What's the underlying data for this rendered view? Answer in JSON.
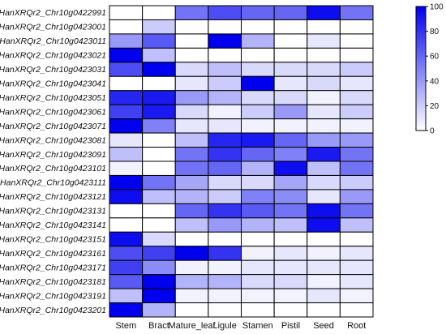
{
  "chart_data": {
    "type": "heatmap",
    "title": "",
    "xlabel": "",
    "ylabel": "",
    "rows": [
      "HanXRQr2_Chr10g0422991",
      "HanXRQr2_Chr10g0423001",
      "HanXRQr2_Chr10g0423011",
      "HanXRQr2_Chr10g0423021",
      "HanXRQr2_Chr10g0423031",
      "HanXRQr2_Chr10g0423041",
      "HanXRQr2_Chr10g0423051",
      "HanXRQr2_Chr10g0423061",
      "HanXRQr2_Chr10g0423071",
      "HanXRQr2_Chr10g0423081",
      "HanXRQr2_Chr10g0423091",
      "HanXRQr2_Chr10g0423101",
      "HanXRQr2_Chr10g0423111",
      "HanXRQr2_Chr10g0423121",
      "HanXRQr2_Chr10g0423131",
      "HanXRQr2_Chr10g0423141",
      "HanXRQr2_Chr10g0423151",
      "HanXRQr2_Chr10g0423161",
      "HanXRQr2_Chr10g0423171",
      "HanXRQr2_Chr10g0423181",
      "HanXRQr2_Chr10g0423191",
      "HanXRQr2_Chr10g0423201"
    ],
    "columns": [
      "Stem",
      "Bract",
      "Mature_leaf",
      "Ligule",
      "Stamen",
      "Pistil",
      "Seed",
      "Root"
    ],
    "values": [
      [
        0,
        0,
        55,
        70,
        60,
        60,
        95,
        55
      ],
      [
        0,
        20,
        0,
        0,
        0,
        0,
        0,
        0
      ],
      [
        40,
        65,
        0,
        100,
        30,
        0,
        10,
        0
      ],
      [
        100,
        25,
        0,
        0,
        0,
        0,
        0,
        0
      ],
      [
        70,
        100,
        15,
        25,
        15,
        15,
        15,
        20
      ],
      [
        0,
        0,
        10,
        20,
        100,
        10,
        15,
        10
      ],
      [
        85,
        90,
        40,
        30,
        15,
        15,
        5,
        15
      ],
      [
        75,
        90,
        15,
        5,
        20,
        40,
        10,
        20
      ],
      [
        100,
        50,
        10,
        10,
        5,
        5,
        5,
        5
      ],
      [
        10,
        0,
        25,
        85,
        90,
        60,
        40,
        40
      ],
      [
        25,
        0,
        55,
        80,
        60,
        50,
        90,
        55
      ],
      [
        5,
        0,
        55,
        60,
        30,
        95,
        25,
        55
      ],
      [
        100,
        55,
        35,
        15,
        15,
        35,
        15,
        20
      ],
      [
        95,
        25,
        30,
        20,
        50,
        45,
        10,
        40
      ],
      [
        0,
        0,
        60,
        80,
        65,
        55,
        95,
        55
      ],
      [
        0,
        0,
        25,
        40,
        30,
        25,
        95,
        25
      ],
      [
        95,
        15,
        0,
        0,
        0,
        0,
        0,
        0
      ],
      [
        70,
        75,
        100,
        80,
        5,
        10,
        5,
        10
      ],
      [
        75,
        45,
        5,
        5,
        10,
        10,
        10,
        10
      ],
      [
        65,
        100,
        30,
        30,
        15,
        15,
        5,
        10
      ],
      [
        25,
        100,
        5,
        5,
        5,
        5,
        10,
        5
      ],
      [
        100,
        30,
        0,
        0,
        0,
        0,
        0,
        0
      ]
    ],
    "colorbar": {
      "min": 0,
      "max": 100,
      "ticks": [
        "100",
        "80",
        "60",
        "40",
        "20",
        "0"
      ],
      "low_color": "#ffffff",
      "high_color": "#0000ee"
    },
    "grid": true,
    "legend": "right"
  }
}
